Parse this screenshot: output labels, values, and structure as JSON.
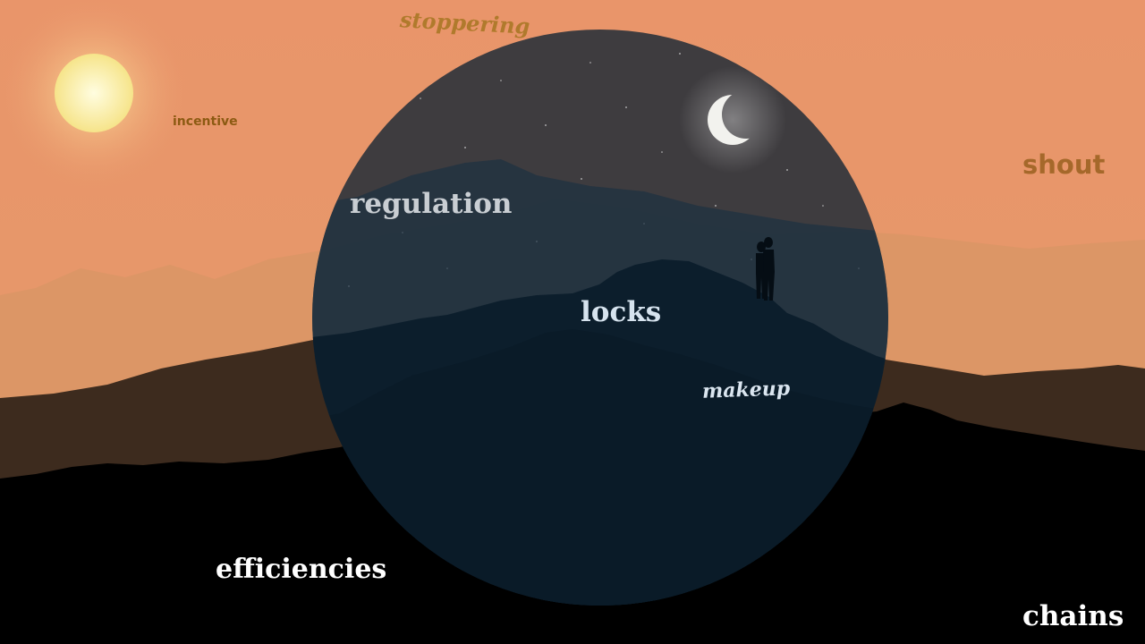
{
  "scene": {
    "elements": [
      "sun",
      "crescent-moon",
      "night-circle",
      "mountain-silhouettes",
      "couple-silhouette"
    ],
    "colors": {
      "sky": "#e6976a",
      "sun": "#fbf1a0",
      "night_circle": "#0e2233",
      "far_ridge": "#dd9a6c",
      "mid_ridge": "#3f2d20",
      "foreground": "#000000"
    }
  },
  "words": {
    "stoppering": "stoppering",
    "incentive": "incentive",
    "shout": "shout",
    "regulation": "regulation",
    "locks": "locks",
    "makeup": "makeup",
    "efficiencies": "efficiencies",
    "chains": "chains"
  }
}
